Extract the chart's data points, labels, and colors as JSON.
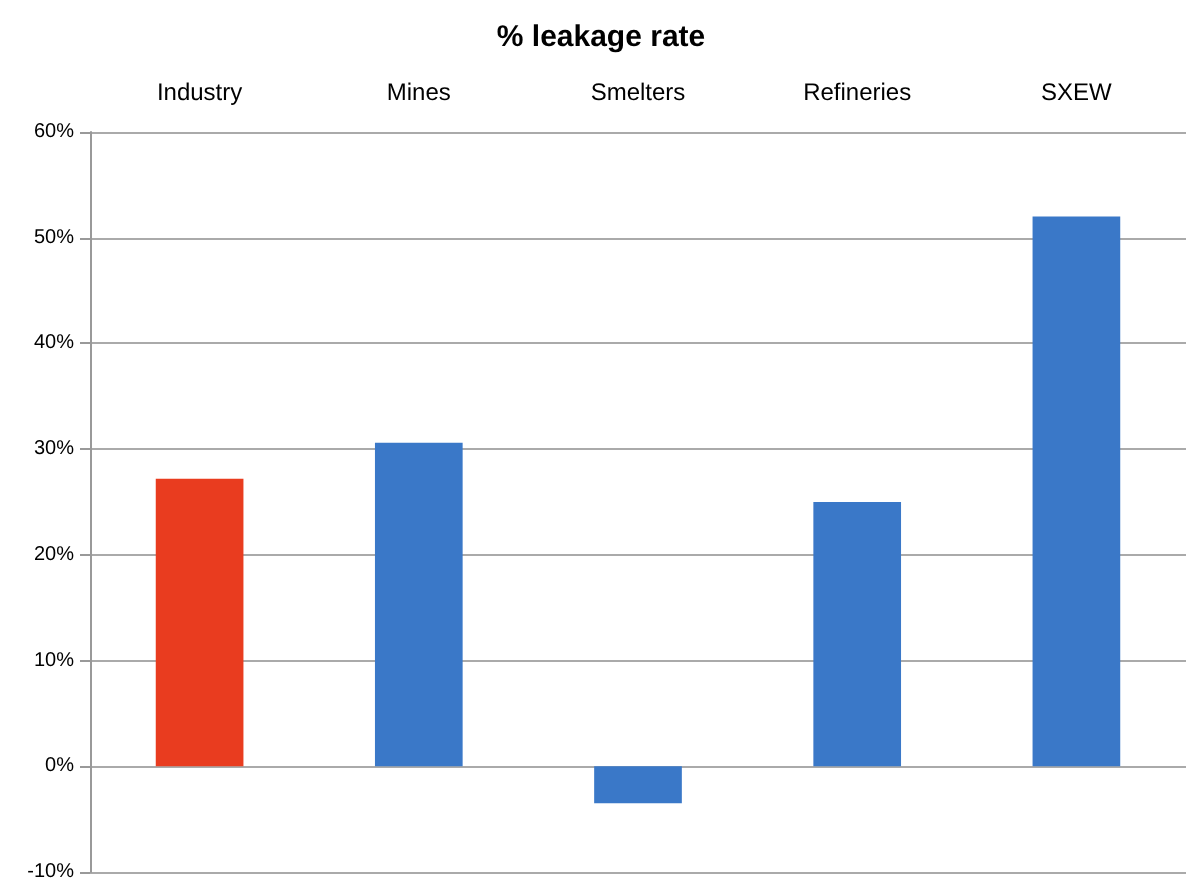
{
  "chart_data": {
    "type": "bar",
    "title": "% leakage rate",
    "categories": [
      "Industry",
      "Mines",
      "Smelters",
      "Refineries",
      "SXEW"
    ],
    "values": [
      27.2,
      30.6,
      -3.5,
      25,
      52
    ],
    "colors": [
      "#e93c1f",
      "#3a78c8",
      "#3a78c8",
      "#3a78c8",
      "#3a78c8"
    ],
    "ylim": [
      -10,
      60
    ],
    "yticks": [
      {
        "value": -10,
        "label": "-10%"
      },
      {
        "value": 0,
        "label": "0%"
      },
      {
        "value": 10,
        "label": "10%"
      },
      {
        "value": 20,
        "label": "20%"
      },
      {
        "value": 30,
        "label": "30%"
      },
      {
        "value": 40,
        "label": "40%"
      },
      {
        "value": 50,
        "label": "50%"
      },
      {
        "value": 60,
        "label": "60%"
      }
    ],
    "grid": "y"
  }
}
